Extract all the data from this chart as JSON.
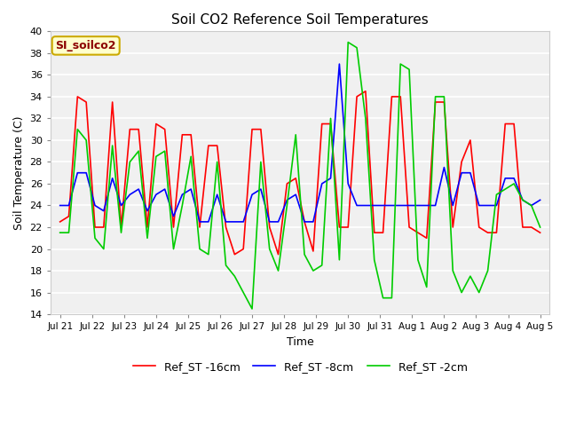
{
  "title": "Soil CO2 Reference Soil Temperatures",
  "xlabel": "Time",
  "ylabel": "Soil Temperature (C)",
  "ylim": [
    14,
    40
  ],
  "yticks": [
    14,
    16,
    18,
    20,
    22,
    24,
    26,
    28,
    30,
    32,
    34,
    36,
    38,
    40
  ],
  "annotation_label": "SI_soilco2",
  "legend": [
    "Ref_ST -16cm",
    "Ref_ST -8cm",
    "Ref_ST -2cm"
  ],
  "colors": [
    "#ff0000",
    "#0000ff",
    "#00cc00"
  ],
  "line_width": 1.2,
  "fig_bg_color": "#ffffff",
  "plot_bg_color": "#f0f0f0",
  "grid_color": "#ffffff",
  "x_tick_labels": [
    "Jul 21",
    "Jul 22",
    "Jul 23",
    "Jul 24",
    "Jul 25",
    "Jul 26",
    "Jul 27",
    "Jul 28",
    "Jul 29",
    "Jul 30",
    "Jul 31",
    "Aug 1",
    "Aug 2",
    "Aug 3",
    "Aug 4",
    "Aug 5"
  ],
  "ref_st_16cm": [
    22.5,
    23.0,
    34.0,
    33.5,
    22.0,
    22.0,
    33.5,
    22.0,
    31.0,
    31.0,
    22.0,
    31.5,
    31.0,
    22.0,
    30.5,
    30.5,
    22.0,
    29.5,
    29.5,
    22.0,
    19.5,
    20.0,
    31.0,
    31.0,
    22.0,
    19.5,
    26.0,
    26.5,
    22.5,
    19.8,
    31.5,
    31.5,
    22.0,
    22.0,
    34.0,
    34.5,
    21.5,
    21.5,
    34.0,
    34.0,
    22.0,
    21.5,
    21.0,
    33.5,
    33.5,
    22.0,
    28.0,
    30.0,
    22.0,
    21.5,
    21.5,
    31.5,
    31.5,
    22.0,
    22.0,
    21.5
  ],
  "ref_st_8cm": [
    24.0,
    24.0,
    27.0,
    27.0,
    24.0,
    23.5,
    26.5,
    24.0,
    25.0,
    25.5,
    23.5,
    25.0,
    25.5,
    23.0,
    25.0,
    25.5,
    22.5,
    22.5,
    25.0,
    22.5,
    22.5,
    22.5,
    25.0,
    25.5,
    22.5,
    22.5,
    24.5,
    25.0,
    22.5,
    22.5,
    26.0,
    26.5,
    37.0,
    26.0,
    24.0,
    24.0,
    24.0,
    24.0,
    24.0,
    24.0,
    24.0,
    24.0,
    24.0,
    24.0,
    27.5,
    24.0,
    27.0,
    27.0,
    24.0,
    24.0,
    24.0,
    26.5,
    26.5,
    24.5,
    24.0,
    24.5
  ],
  "ref_st_2cm": [
    21.5,
    21.5,
    31.0,
    30.0,
    21.0,
    20.0,
    29.5,
    21.5,
    28.0,
    29.0,
    21.0,
    28.5,
    29.0,
    20.0,
    24.0,
    28.5,
    20.0,
    19.5,
    28.0,
    18.5,
    17.5,
    16.0,
    14.5,
    28.0,
    20.0,
    18.0,
    24.0,
    30.5,
    19.5,
    18.0,
    18.5,
    32.0,
    19.0,
    39.0,
    38.5,
    32.0,
    19.0,
    15.5,
    15.5,
    37.0,
    36.5,
    19.0,
    16.5,
    34.0,
    34.0,
    18.0,
    16.0,
    17.5,
    16.0,
    18.0,
    25.0,
    25.5,
    26.0,
    24.5,
    24.0,
    22.0
  ]
}
